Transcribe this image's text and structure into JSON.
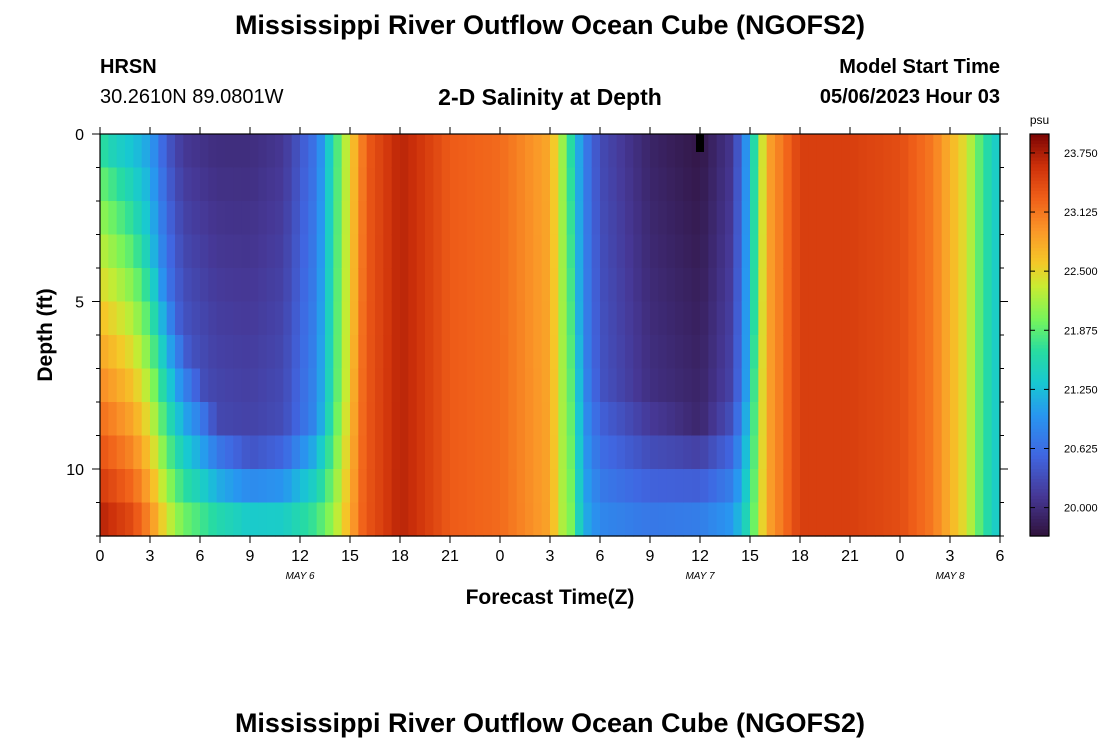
{
  "header": {
    "title": "Mississippi River Outflow Ocean Cube (NGOFS2)",
    "station": "HRSN",
    "coords": "30.2610N  89.0801W",
    "plot_title": "2-D Salinity at Depth",
    "model_start_label": "Model Start Time",
    "model_start_value": "05/06/2023 Hour 03"
  },
  "footer": {
    "title": "Mississippi River Outflow Ocean Cube (NGOFS2)"
  },
  "chart_data": {
    "type": "heatmap",
    "title": "2-D Salinity at Depth",
    "xlabel": "Forecast Time(Z)",
    "ylabel": "Depth (ft)",
    "x_range_hours": [
      0,
      54
    ],
    "x_tick_labels": [
      "0",
      "3",
      "6",
      "9",
      "12",
      "15",
      "18",
      "21",
      "0",
      "3",
      "6",
      "9",
      "12",
      "15",
      "18",
      "21",
      "0",
      "3",
      "6"
    ],
    "date_labels": [
      {
        "text": "MAY 6",
        "hour": 12
      },
      {
        "text": "MAY 7",
        "hour": 36
      },
      {
        "text": "MAY 8",
        "hour": 51
      }
    ],
    "y_range_ft": [
      0,
      12
    ],
    "y_ticks": [
      0,
      5,
      10
    ],
    "colorbar": {
      "unit": "psu",
      "min": 19.7,
      "max": 23.95,
      "ticks": [
        "23.750",
        "23.125",
        "22.500",
        "21.875",
        "21.250",
        "20.625",
        "20.000"
      ],
      "tick_values": [
        23.75,
        23.125,
        22.5,
        21.875,
        21.25,
        20.625,
        20.0
      ]
    },
    "time_profile": {
      "hours": [
        0,
        2,
        3,
        4,
        5,
        7,
        9,
        11,
        13,
        14,
        15,
        16,
        18,
        19,
        21,
        24,
        27,
        28,
        29,
        30,
        33,
        36,
        38,
        39,
        40,
        42,
        45,
        48,
        50,
        52,
        53,
        54
      ],
      "surface_psu": [
        21.4,
        21.2,
        21.0,
        20.4,
        20.1,
        20.0,
        20.0,
        20.1,
        20.7,
        21.6,
        22.5,
        23.3,
        23.7,
        23.6,
        23.3,
        23.2,
        22.8,
        21.9,
        20.8,
        20.3,
        19.9,
        19.75,
        20.1,
        21.2,
        22.8,
        23.5,
        23.5,
        23.4,
        23.1,
        22.4,
        21.7,
        21.3
      ],
      "bottom_psu": [
        23.8,
        23.5,
        23.1,
        22.5,
        22.1,
        21.8,
        21.6,
        21.6,
        21.9,
        22.2,
        22.8,
        23.4,
        23.7,
        23.6,
        23.3,
        23.2,
        22.9,
        22.3,
        21.2,
        20.9,
        20.8,
        20.9,
        21.1,
        21.7,
        22.8,
        23.5,
        23.5,
        23.4,
        23.1,
        22.4,
        21.7,
        21.3
      ],
      "mixing_depth_ft": [
        0.5,
        2.0,
        3.2,
        4.5,
        6.0,
        8.5,
        9.2,
        9.0,
        8.5,
        8.0,
        7.5,
        0,
        0,
        0,
        0,
        0,
        0,
        0,
        7.0,
        7.5,
        8.0,
        8.5,
        8.0,
        7.5,
        0,
        0,
        0,
        0,
        0,
        0,
        0,
        0
      ]
    },
    "grid": false,
    "legend": "colorbar-right"
  }
}
